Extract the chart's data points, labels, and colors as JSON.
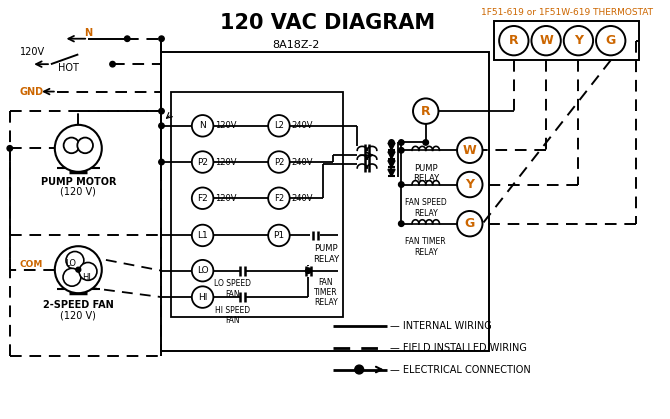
{
  "title": "120 VAC DIAGRAM",
  "title_fontsize": 15,
  "title_fontweight": "bold",
  "bg_color": "#ffffff",
  "line_color": "#000000",
  "orange_color": "#cc6600",
  "thermostat_label": "1F51-619 or 1F51W-619 THERMOSTAT",
  "control_box_label": "8A18Z-2",
  "terminal_labels": [
    "R",
    "W",
    "Y",
    "G"
  ],
  "input_terminals": [
    "N",
    "P2",
    "F2"
  ],
  "output_terminals": [
    "L2",
    "P2",
    "F2"
  ],
  "input_voltages": [
    "120V",
    "120V",
    "120V"
  ],
  "output_voltages": [
    "240V",
    "240V",
    "240V"
  ],
  "relay_names": [
    "PUMP\nRELAY",
    "FAN SPEED\nRELAY",
    "FAN TIMER\nRELAY"
  ]
}
